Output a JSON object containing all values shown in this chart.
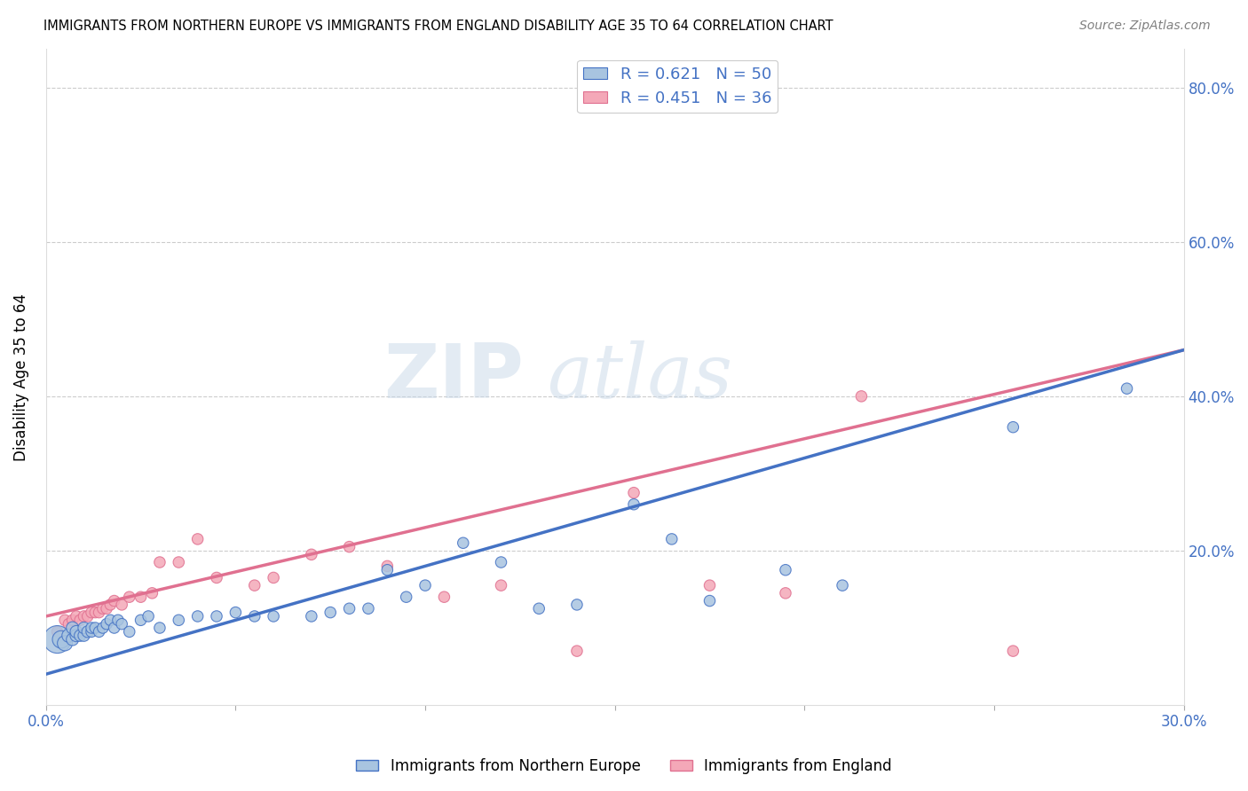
{
  "title": "IMMIGRANTS FROM NORTHERN EUROPE VS IMMIGRANTS FROM ENGLAND DISABILITY AGE 35 TO 64 CORRELATION CHART",
  "source": "Source: ZipAtlas.com",
  "xlabel": "",
  "ylabel": "Disability Age 35 to 64",
  "xlim": [
    0.0,
    0.3
  ],
  "ylim": [
    0.0,
    0.85
  ],
  "ytick_labels": [
    "20.0%",
    "40.0%",
    "60.0%",
    "80.0%"
  ],
  "ytick_positions": [
    0.2,
    0.4,
    0.6,
    0.8
  ],
  "xtick_positions": [
    0.0,
    0.05,
    0.1,
    0.15,
    0.2,
    0.25,
    0.3
  ],
  "blue_R": 0.621,
  "blue_N": 50,
  "pink_R": 0.451,
  "pink_N": 36,
  "blue_color": "#a8c4e0",
  "pink_color": "#f4a8b8",
  "blue_line_color": "#4472c4",
  "pink_line_color": "#e07090",
  "legend_text_color": "#4472c4",
  "watermark": "ZIPatlas",
  "blue_scatter_x": [
    0.003,
    0.004,
    0.005,
    0.006,
    0.007,
    0.007,
    0.008,
    0.008,
    0.009,
    0.01,
    0.01,
    0.011,
    0.012,
    0.012,
    0.013,
    0.014,
    0.015,
    0.016,
    0.017,
    0.018,
    0.019,
    0.02,
    0.022,
    0.025,
    0.027,
    0.03,
    0.035,
    0.04,
    0.045,
    0.05,
    0.055,
    0.06,
    0.07,
    0.075,
    0.08,
    0.085,
    0.09,
    0.095,
    0.1,
    0.11,
    0.12,
    0.13,
    0.14,
    0.155,
    0.165,
    0.175,
    0.195,
    0.21,
    0.255,
    0.285
  ],
  "blue_scatter_y": [
    0.085,
    0.085,
    0.08,
    0.09,
    0.085,
    0.1,
    0.09,
    0.095,
    0.09,
    0.09,
    0.1,
    0.095,
    0.095,
    0.1,
    0.1,
    0.095,
    0.1,
    0.105,
    0.11,
    0.1,
    0.11,
    0.105,
    0.095,
    0.11,
    0.115,
    0.1,
    0.11,
    0.115,
    0.115,
    0.12,
    0.115,
    0.115,
    0.115,
    0.12,
    0.125,
    0.125,
    0.175,
    0.14,
    0.155,
    0.21,
    0.185,
    0.125,
    0.13,
    0.26,
    0.215,
    0.135,
    0.175,
    0.155,
    0.36,
    0.41
  ],
  "blue_scatter_size": [
    500,
    200,
    150,
    120,
    100,
    100,
    100,
    100,
    90,
    90,
    90,
    90,
    80,
    80,
    80,
    80,
    80,
    80,
    80,
    80,
    80,
    80,
    80,
    80,
    80,
    80,
    80,
    80,
    80,
    80,
    80,
    80,
    80,
    80,
    80,
    80,
    80,
    80,
    80,
    80,
    80,
    80,
    80,
    80,
    80,
    80,
    80,
    80,
    80,
    80
  ],
  "pink_scatter_x": [
    0.003,
    0.005,
    0.006,
    0.007,
    0.008,
    0.009,
    0.01,
    0.011,
    0.012,
    0.013,
    0.014,
    0.015,
    0.016,
    0.017,
    0.018,
    0.02,
    0.022,
    0.025,
    0.028,
    0.03,
    0.035,
    0.04,
    0.045,
    0.055,
    0.06,
    0.07,
    0.08,
    0.09,
    0.105,
    0.12,
    0.14,
    0.155,
    0.175,
    0.195,
    0.215,
    0.255
  ],
  "pink_scatter_y": [
    0.095,
    0.11,
    0.105,
    0.11,
    0.115,
    0.11,
    0.115,
    0.115,
    0.12,
    0.12,
    0.12,
    0.125,
    0.125,
    0.13,
    0.135,
    0.13,
    0.14,
    0.14,
    0.145,
    0.185,
    0.185,
    0.215,
    0.165,
    0.155,
    0.165,
    0.195,
    0.205,
    0.18,
    0.14,
    0.155,
    0.07,
    0.275,
    0.155,
    0.145,
    0.4,
    0.07
  ],
  "pink_scatter_size": [
    80,
    80,
    80,
    80,
    80,
    80,
    80,
    80,
    80,
    80,
    80,
    80,
    80,
    80,
    80,
    80,
    80,
    80,
    80,
    80,
    80,
    80,
    80,
    80,
    80,
    80,
    80,
    80,
    80,
    80,
    80,
    80,
    80,
    80,
    80,
    80
  ],
  "blue_line_x0": 0.0,
  "blue_line_y0": 0.04,
  "blue_line_x1": 0.3,
  "blue_line_y1": 0.46,
  "pink_line_x0": 0.0,
  "pink_line_y0": 0.115,
  "pink_line_x1": 0.3,
  "pink_line_y1": 0.46
}
